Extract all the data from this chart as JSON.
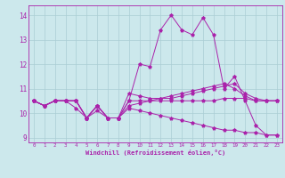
{
  "xlabel": "Windchill (Refroidissement éolien,°C)",
  "background_color": "#cce8ec",
  "grid_color": "#aacdd4",
  "line_color": "#aa22aa",
  "xlim": [
    -0.5,
    23.5
  ],
  "ylim": [
    8.8,
    14.4
  ],
  "yticks": [
    9,
    10,
    11,
    12,
    13,
    14
  ],
  "xticks": [
    0,
    1,
    2,
    3,
    4,
    5,
    6,
    7,
    8,
    9,
    10,
    11,
    12,
    13,
    14,
    15,
    16,
    17,
    18,
    19,
    20,
    21,
    22,
    23
  ],
  "series": [
    [
      10.5,
      10.3,
      10.5,
      10.5,
      10.5,
      9.8,
      10.3,
      9.8,
      9.8,
      10.5,
      12.0,
      11.9,
      13.4,
      14.0,
      13.4,
      13.2,
      13.9,
      13.2,
      11.0,
      11.5,
      10.5,
      9.5,
      9.1,
      9.1
    ],
    [
      10.5,
      10.3,
      10.5,
      10.5,
      10.5,
      9.8,
      10.3,
      9.8,
      9.8,
      10.8,
      10.7,
      10.6,
      10.6,
      10.6,
      10.7,
      10.8,
      10.9,
      11.0,
      11.1,
      11.2,
      10.8,
      10.6,
      10.5,
      10.5
    ],
    [
      10.5,
      10.3,
      10.5,
      10.5,
      10.5,
      9.8,
      10.3,
      9.8,
      9.8,
      10.5,
      10.5,
      10.5,
      10.6,
      10.7,
      10.8,
      10.9,
      11.0,
      11.1,
      11.2,
      11.0,
      10.7,
      10.5,
      10.5,
      10.5
    ],
    [
      10.5,
      10.3,
      10.5,
      10.5,
      10.5,
      9.8,
      10.3,
      9.8,
      9.8,
      10.3,
      10.4,
      10.5,
      10.5,
      10.5,
      10.5,
      10.5,
      10.5,
      10.5,
      10.6,
      10.6,
      10.6,
      10.5,
      10.5,
      10.5
    ],
    [
      10.5,
      10.3,
      10.5,
      10.5,
      10.2,
      9.8,
      10.1,
      9.8,
      9.8,
      10.2,
      10.1,
      10.0,
      9.9,
      9.8,
      9.7,
      9.6,
      9.5,
      9.4,
      9.3,
      9.3,
      9.2,
      9.2,
      9.1,
      9.1
    ]
  ]
}
